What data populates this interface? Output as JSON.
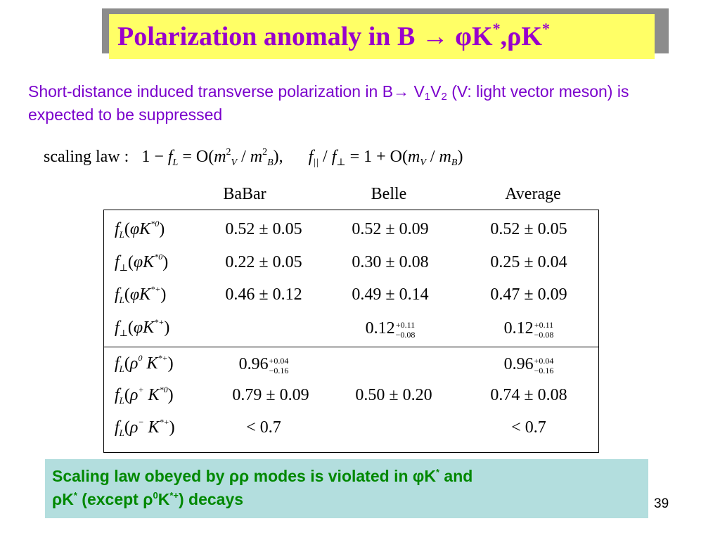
{
  "title": {
    "prefix": "Polarization anomaly in  B ",
    "arrow": "→",
    "phi": "φ",
    "k1": "K",
    "star1": "*",
    "comma": ",",
    "rho": "ρ",
    "k2": "K",
    "star2": "*"
  },
  "intro": {
    "part1": "Short-distance induced transverse polarization in B",
    "arrow": "→",
    "v": " V",
    "sub1": "1",
    "v2": "V",
    "sub2": "2",
    "part2": " (V: light vector meson) is expected to be suppressed"
  },
  "formula": {
    "label": "scaling  law :",
    "one_minus": "1 − ",
    "f": "f",
    "L": "L",
    "eq_O": " = O(",
    "m1": "m",
    "V": "V",
    "two1": "2",
    "slash": " / ",
    "m2": "m",
    "B": "B",
    "two2": "2",
    "close": "),",
    "ratio_f1": "f",
    "par": "||",
    "ratio_slash": " / ",
    "ratio_f2": "f",
    "perp": "⊥",
    "eq2": " = 1 + O(",
    "m3": "m",
    "V2": "V",
    "slash2": " / ",
    "m4": "m",
    "B2": "B",
    "close2": ")"
  },
  "table": {
    "headers": [
      "BaBar",
      "Belle",
      "Average"
    ],
    "rows": [
      {
        "f": "f",
        "pol": "L",
        "open": "(",
        "meson": "φK",
        "charge": "*0",
        "close": ")",
        "babar": "0.52 ± 0.05",
        "belle": "0.52 ± 0.09",
        "avg": "0.52 ± 0.05"
      },
      {
        "f": "f",
        "pol": "⊥",
        "open": "(",
        "meson": "φK",
        "charge": "*0",
        "close": ")",
        "babar": "0.22 ± 0.05",
        "belle": "0.30 ± 0.08",
        "avg": "0.25 ± 0.04"
      },
      {
        "f": "f",
        "pol": "L",
        "open": "(",
        "meson": "φK",
        "charge": "*+",
        "close": ")",
        "babar": "0.46 ± 0.12",
        "belle": "0.49 ± 0.14",
        "avg": "0.47 ± 0.09"
      },
      {
        "f": "f",
        "pol": "⊥",
        "open": "(",
        "meson": "φK",
        "charge": "*+",
        "close": ")",
        "babar": "",
        "belle_val": "0.12",
        "belle_up": "+0.11",
        "belle_dn": "−0.08",
        "avg_val": "0.12",
        "avg_up": "+0.11",
        "avg_dn": "−0.08"
      },
      {
        "f": "f",
        "pol": "L",
        "open": "(",
        "rho": "ρ",
        "rho_charge": "0",
        "meson": " K",
        "charge": "*+",
        "close": ")",
        "babar_val": "0.96",
        "babar_up": "+0.04",
        "babar_dn": "−0.16",
        "belle": "",
        "avg_val": "0.96",
        "avg_up": "+0.04",
        "avg_dn": "−0.16"
      },
      {
        "f": "f",
        "pol": "L",
        "open": "(",
        "rho": "ρ",
        "rho_charge": "+",
        "meson": " K",
        "charge": "*0",
        "close": ")",
        "babar": "0.79 ± 0.09",
        "belle": "0.50 ± 0.20",
        "avg": "0.74 ± 0.08"
      },
      {
        "f": "f",
        "pol": "L",
        "open": "(",
        "rho": "ρ",
        "rho_charge": "−",
        "meson": " K",
        "charge": "*+",
        "close": ")",
        "babar": "< 0.7",
        "belle": "",
        "avg": "< 0.7"
      }
    ]
  },
  "conclusion": {
    "line1a": "Scaling law obeyed by ",
    "rhorho": "ρρ",
    "line1b": " modes is violated in ",
    "phi": "φ",
    "k1": "K",
    "star1": "*",
    "and": " and",
    "rho": "ρ",
    "k2": "K",
    "star2": "*",
    "except": "  (except ",
    "rho2": "ρ",
    "zero": "0",
    "k3": "K",
    "starplus": "*+",
    "decays": ") decays"
  },
  "page_number": "39",
  "colors": {
    "title_text": "#9900cc",
    "title_bg": "#ffff66",
    "intro_text": "#7a00cc",
    "conclusion_text": "#008800",
    "conclusion_bg": "#b3dede"
  }
}
